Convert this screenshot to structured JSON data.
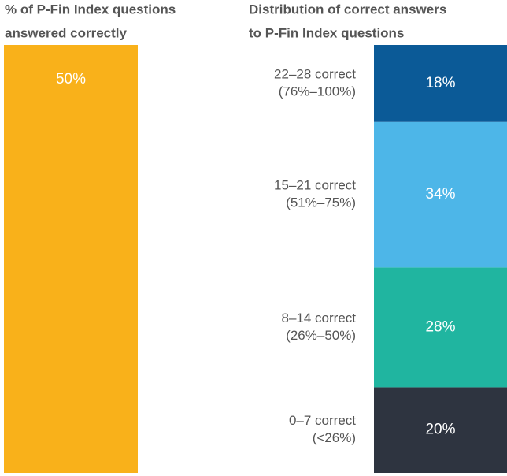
{
  "chart_data": [
    {
      "type": "bar",
      "title": [
        "% of P-Fin Index questions",
        "answered correctly"
      ],
      "values": [
        50
      ],
      "value_labels": [
        "50%"
      ],
      "color": "#f9b11a",
      "ylim": [
        0,
        50
      ]
    },
    {
      "type": "stacked_bar",
      "title": [
        "Distribution of correct answers",
        "to P-Fin Index questions"
      ],
      "ylim": [
        0,
        100
      ],
      "series": [
        {
          "name": [
            "0–7 correct",
            "(<26%)"
          ],
          "color": "#2e3440",
          "values": [
            20
          ],
          "value_labels": [
            "20%"
          ]
        },
        {
          "name": [
            "8–14 correct",
            "(26%–50%)"
          ],
          "color": "#20b5a0",
          "values": [
            28
          ],
          "value_labels": [
            "28%"
          ]
        },
        {
          "name": [
            "15–21 correct",
            "(51%–75%)"
          ],
          "color": "#4db6e8",
          "values": [
            34
          ],
          "value_labels": [
            "34%"
          ]
        },
        {
          "name": [
            "22–28 correct",
            "(76%–100%)"
          ],
          "color": "#0b5a97",
          "values": [
            18
          ],
          "value_labels": [
            "18%"
          ]
        }
      ]
    }
  ]
}
